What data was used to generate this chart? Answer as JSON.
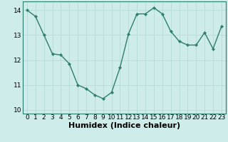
{
  "x": [
    0,
    1,
    2,
    3,
    4,
    5,
    6,
    7,
    8,
    9,
    10,
    11,
    12,
    13,
    14,
    15,
    16,
    17,
    18,
    19,
    20,
    21,
    22,
    23
  ],
  "y": [
    14.0,
    13.75,
    13.0,
    12.25,
    12.2,
    11.85,
    11.0,
    10.85,
    10.6,
    10.45,
    10.7,
    11.7,
    13.05,
    13.85,
    13.85,
    14.1,
    13.85,
    13.15,
    12.75,
    12.6,
    12.6,
    13.1,
    12.45,
    13.35
  ],
  "xlabel": "Humidex (Indice chaleur)",
  "line_color": "#2e7d6e",
  "marker_color": "#2e7d6e",
  "bg_color": "#ceecea",
  "grid_color": "#b8dbd8",
  "axis_color": "#2e7d6e",
  "tick_color": "#000000",
  "ylim": [
    9.85,
    14.35
  ],
  "xlim": [
    -0.5,
    23.5
  ],
  "yticks": [
    10,
    11,
    12,
    13,
    14
  ],
  "xticks": [
    0,
    1,
    2,
    3,
    4,
    5,
    6,
    7,
    8,
    9,
    10,
    11,
    12,
    13,
    14,
    15,
    16,
    17,
    18,
    19,
    20,
    21,
    22,
    23
  ],
  "xlabel_fontsize": 8,
  "tick_fontsize": 6.5,
  "linewidth": 1.0,
  "markersize": 2.2
}
